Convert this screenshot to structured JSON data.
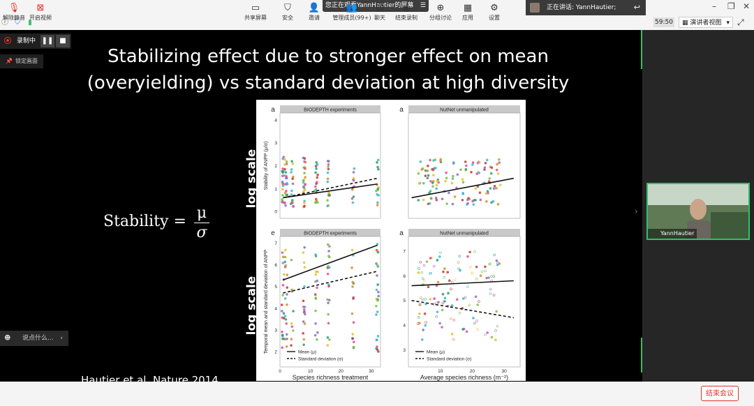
{
  "top": {
    "viewing_banner": "您正在观看YannHautier的屏幕",
    "speaker_label": "正在讲话: YannHautier;",
    "timer": "59:50",
    "view_mode": "演讲者视图"
  },
  "recording": {
    "label": "录制中",
    "lock_label": "锁定画面"
  },
  "slide": {
    "title_line1": "Stabilizing effect due to stronger effect on mean",
    "title_line2": "(overyielding) vs standard deviation at high diversity",
    "formula_label": "Stability = ",
    "formula_num": "μ",
    "formula_den": "σ",
    "log_scale_top": "log scale",
    "log_scale_bottom": "log scale",
    "citation": "Hautier et al. Nature 2014"
  },
  "chart_data": [
    {
      "type": "scatter",
      "panel_letter": "a",
      "title": "BIODEPTH experiments",
      "ylabel": "Stability of ANPP (μ/σ)",
      "yticks": [
        "0",
        "1",
        "2",
        "3",
        "4"
      ],
      "lines": [
        {
          "style": "solid",
          "x": [
            1,
            32
          ],
          "y": [
            0.6,
            1.2
          ]
        },
        {
          "style": "dashed",
          "x": [
            1,
            32
          ],
          "y": [
            0.6,
            1.45
          ]
        }
      ]
    },
    {
      "type": "scatter",
      "panel_letter": "a",
      "title": "NutNet unmanipulated",
      "lines": [
        {
          "style": "solid",
          "x": [
            1,
            33
          ],
          "y": [
            0.6,
            1.45
          ]
        }
      ]
    },
    {
      "type": "scatter",
      "panel_letter": "e",
      "title": "BIODEPTH experiments",
      "ylabel": "Temporal mean and standard deviation of ANPP",
      "xlabel": "Species richness treatment",
      "yticks": [
        "2",
        "3",
        "4",
        "5",
        "6",
        "7"
      ],
      "xticks": [
        "0",
        "10",
        "20",
        "30"
      ],
      "legend": [
        "Mean (μ)",
        "Standard deviation (σ)"
      ],
      "lines": [
        {
          "name": "Mean (μ)",
          "style": "solid",
          "x": [
            1,
            32
          ],
          "y": [
            5.3,
            6.9
          ]
        },
        {
          "name": "Standard deviation (σ)",
          "style": "dashed",
          "x": [
            1,
            32
          ],
          "y": [
            4.7,
            5.7
          ]
        }
      ]
    },
    {
      "type": "scatter",
      "panel_letter": "a",
      "title": "NutNet unmanipulated",
      "xlabel": "Average species richness (m⁻²)",
      "yticks": [
        "3",
        "4",
        "5",
        "6",
        "7"
      ],
      "xticks": [
        "10",
        "20",
        "30"
      ],
      "legend": [
        "Mean (μ)",
        "Standard deviation (σ)"
      ],
      "lines": [
        {
          "name": "Mean (μ)",
          "style": "solid",
          "x": [
            1,
            33
          ],
          "y": [
            5.6,
            5.8
          ]
        },
        {
          "name": "Standard deviation (σ)",
          "style": "dashed",
          "x": [
            1,
            33
          ],
          "y": [
            5.0,
            4.3
          ]
        }
      ]
    }
  ],
  "chat": {
    "placeholder": "说点什么..."
  },
  "toolbar": {
    "mute": "解除静音",
    "video": "开启视频",
    "share": "共享屏幕",
    "security": "安全",
    "invite": "邀请",
    "members": "管理成员(99+)",
    "chat": "聊天",
    "record": "结束录制",
    "breakout": "分组讨论",
    "apps": "应用",
    "settings": "设置",
    "end": "结束会议"
  },
  "participant": {
    "name": "YannHautier"
  },
  "colors": {
    "accent_green": "#2ec26a",
    "end_red": "#e0312b"
  }
}
